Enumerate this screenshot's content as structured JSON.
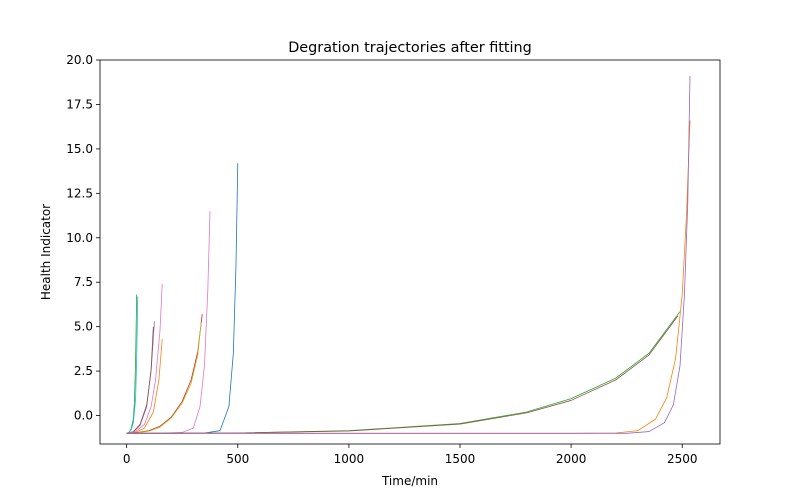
{
  "chart_data": {
    "type": "line",
    "title": "Degration trajectories after fitting",
    "xlabel": "Time/min",
    "ylabel": "Health Indicator",
    "xlim": [
      -120,
      2670
    ],
    "ylim": [
      -1.6,
      20.0
    ],
    "xticks": [
      0,
      500,
      1000,
      1500,
      2000,
      2500
    ],
    "yticks": [
      0.0,
      2.5,
      5.0,
      7.5,
      10.0,
      12.5,
      15.0,
      17.5,
      20.0
    ],
    "xtick_labels": [
      "0",
      "500",
      "1000",
      "1500",
      "2000",
      "2500"
    ],
    "ytick_labels": [
      "0.0",
      "2.5",
      "5.0",
      "7.5",
      "10.0",
      "12.5",
      "15.0",
      "17.5",
      "20.0"
    ],
    "grid": false,
    "legend": "none",
    "series": [
      {
        "color": "#2ca02c",
        "x": [
          0,
          10,
          20,
          30,
          35,
          40,
          45
        ],
        "y": [
          -1.0,
          -0.95,
          -0.75,
          -0.2,
          0.8,
          3.0,
          6.8
        ]
      },
      {
        "color": "#17becf",
        "x": [
          0,
          10,
          20,
          30,
          40,
          45,
          50
        ],
        "y": [
          -1.0,
          -0.95,
          -0.8,
          -0.4,
          0.9,
          3.2,
          6.7
        ]
      },
      {
        "color": "#9467bd",
        "x": [
          0,
          30,
          60,
          90,
          110,
          125
        ],
        "y": [
          -1.0,
          -0.9,
          -0.5,
          0.6,
          2.5,
          5.3
        ]
      },
      {
        "color": "#8c564b",
        "x": [
          0,
          30,
          60,
          90,
          110,
          120
        ],
        "y": [
          -1.0,
          -0.92,
          -0.55,
          0.5,
          2.6,
          5.0
        ]
      },
      {
        "color": "#e377c2",
        "x": [
          0,
          40,
          80,
          110,
          130,
          150,
          160
        ],
        "y": [
          -1.0,
          -0.9,
          -0.5,
          0.5,
          2.0,
          4.8,
          7.4
        ]
      },
      {
        "color": "#ff7f0e",
        "x": [
          0,
          40,
          80,
          120,
          145,
          160
        ],
        "y": [
          -1.0,
          -0.95,
          -0.7,
          0.2,
          2.0,
          4.3
        ]
      },
      {
        "color": "#d62728",
        "x": [
          0,
          50,
          100,
          150,
          200,
          250,
          290,
          320,
          340
        ],
        "y": [
          -1.0,
          -0.95,
          -0.85,
          -0.6,
          -0.1,
          0.8,
          2.0,
          3.6,
          5.7
        ]
      },
      {
        "color": "#bcbd22",
        "x": [
          0,
          50,
          100,
          150,
          200,
          250,
          290,
          320,
          335
        ],
        "y": [
          -1.0,
          -0.96,
          -0.88,
          -0.65,
          -0.15,
          0.7,
          1.8,
          3.4,
          5.2
        ]
      },
      {
        "color": "#e377c2",
        "x": [
          0,
          150,
          250,
          300,
          330,
          350,
          365,
          375
        ],
        "y": [
          -1.0,
          -1.0,
          -0.95,
          -0.7,
          0.5,
          2.8,
          7.0,
          11.5
        ]
      },
      {
        "color": "#1f77b4",
        "x": [
          0,
          200,
          350,
          420,
          460,
          480,
          492,
          500
        ],
        "y": [
          -1.0,
          -1.0,
          -0.98,
          -0.85,
          0.5,
          3.5,
          8.5,
          14.2
        ]
      },
      {
        "color": "#2ca02c",
        "x": [
          0,
          500,
          1000,
          1500,
          1800,
          2000,
          2200,
          2350,
          2490
        ],
        "y": [
          -1.0,
          -0.98,
          -0.85,
          -0.45,
          0.2,
          0.95,
          2.1,
          3.5,
          5.85
        ]
      },
      {
        "color": "#8c564b",
        "x": [
          0,
          500,
          1000,
          1500,
          1800,
          2000,
          2200,
          2350,
          2480
        ],
        "y": [
          -1.0,
          -0.98,
          -0.87,
          -0.48,
          0.15,
          0.85,
          2.0,
          3.4,
          5.6
        ]
      },
      {
        "color": "#ff7f0e",
        "x": [
          0,
          1000,
          2000,
          2200,
          2300,
          2380,
          2430,
          2470,
          2500,
          2520,
          2535
        ],
        "y": [
          -1.0,
          -1.0,
          -1.0,
          -0.98,
          -0.85,
          -0.2,
          1.0,
          3.2,
          6.8,
          11.5,
          16.6
        ]
      },
      {
        "color": "#9467bd",
        "x": [
          0,
          1000,
          2000,
          2250,
          2350,
          2420,
          2460,
          2490,
          2510,
          2525,
          2535
        ],
        "y": [
          -1.0,
          -1.0,
          -1.0,
          -1.0,
          -0.9,
          -0.4,
          0.6,
          2.8,
          6.8,
          12.0,
          19.1
        ]
      }
    ]
  }
}
